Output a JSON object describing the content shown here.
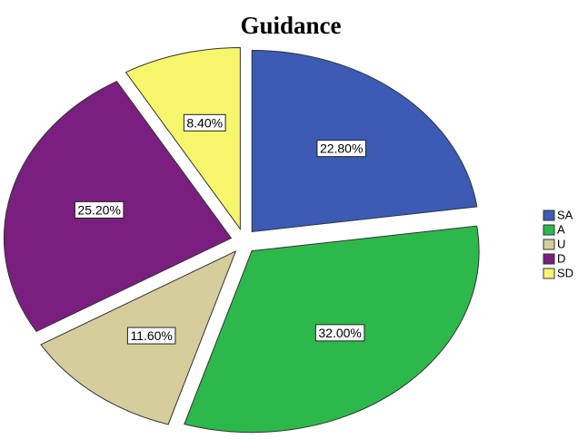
{
  "chart_data": {
    "type": "pie",
    "title": "Guidance",
    "categories": [
      "SA",
      "A",
      "U",
      "D",
      "SD"
    ],
    "values": [
      22.8,
      32.0,
      11.6,
      25.2,
      8.4
    ],
    "value_labels": [
      "22.80%",
      "32.00%",
      "11.60%",
      "25.20%",
      "8.40%"
    ],
    "colors": [
      "#3b5bb4",
      "#2db84b",
      "#d5cd9c",
      "#7a1f7f",
      "#f6f56b"
    ]
  }
}
